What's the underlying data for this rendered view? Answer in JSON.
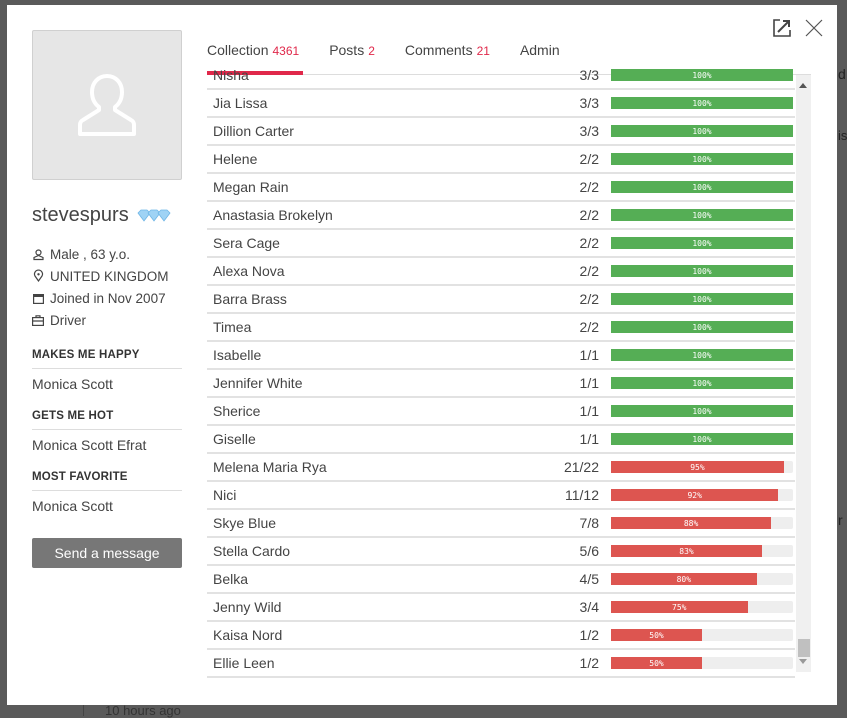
{
  "background": {
    "peek_text_1": "d",
    "peek_text_2": "is",
    "peek_text_3": "r",
    "timestamp": "10 hours ago"
  },
  "modal": {
    "icons": {
      "open_external": "external-link-icon",
      "close": "close-icon"
    }
  },
  "profile": {
    "username": "stevespurs",
    "badge_icon": "diamonds-icon",
    "details": [
      {
        "icon": "user-icon",
        "text": "Male , 63 y.o."
      },
      {
        "icon": "location-pin-icon",
        "text": "UNITED KINGDOM"
      },
      {
        "icon": "calendar-icon",
        "text": "Joined in Nov 2007"
      },
      {
        "icon": "briefcase-icon",
        "text": "Driver"
      }
    ],
    "sections": [
      {
        "title": "MAKES ME HAPPY",
        "value": "Monica Scott"
      },
      {
        "title": "GETS ME HOT",
        "value": "Monica Scott Efrat"
      },
      {
        "title": "MOST FAVORITE",
        "value": "Monica Scott"
      }
    ],
    "send_button": "Send a message"
  },
  "tabs": [
    {
      "label": "Collection",
      "count": "4361",
      "active": true
    },
    {
      "label": "Posts",
      "count": "2",
      "active": false
    },
    {
      "label": "Comments",
      "count": "21",
      "active": false
    },
    {
      "label": "Admin",
      "count": "",
      "active": false
    }
  ],
  "colors": {
    "accent": "#e0284a",
    "complete": "#55ae55",
    "incomplete": "#dd5550",
    "track": "#eeeeee"
  },
  "collection": [
    {
      "name": "Nisha",
      "ratio": "3/3",
      "percent": 100
    },
    {
      "name": "Jia Lissa",
      "ratio": "3/3",
      "percent": 100
    },
    {
      "name": "Dillion Carter",
      "ratio": "3/3",
      "percent": 100
    },
    {
      "name": "Helene",
      "ratio": "2/2",
      "percent": 100
    },
    {
      "name": "Megan Rain",
      "ratio": "2/2",
      "percent": 100
    },
    {
      "name": "Anastasia Brokelyn",
      "ratio": "2/2",
      "percent": 100
    },
    {
      "name": "Sera Cage",
      "ratio": "2/2",
      "percent": 100
    },
    {
      "name": "Alexa Nova",
      "ratio": "2/2",
      "percent": 100
    },
    {
      "name": "Barra Brass",
      "ratio": "2/2",
      "percent": 100
    },
    {
      "name": "Timea",
      "ratio": "2/2",
      "percent": 100
    },
    {
      "name": "Isabelle",
      "ratio": "1/1",
      "percent": 100
    },
    {
      "name": "Jennifer White",
      "ratio": "1/1",
      "percent": 100
    },
    {
      "name": "Sherice",
      "ratio": "1/1",
      "percent": 100
    },
    {
      "name": "Giselle",
      "ratio": "1/1",
      "percent": 100
    },
    {
      "name": "Melena Maria Rya",
      "ratio": "21/22",
      "percent": 95
    },
    {
      "name": "Nici",
      "ratio": "11/12",
      "percent": 92
    },
    {
      "name": "Skye Blue",
      "ratio": "7/8",
      "percent": 88
    },
    {
      "name": "Stella Cardo",
      "ratio": "5/6",
      "percent": 83
    },
    {
      "name": "Belka",
      "ratio": "4/5",
      "percent": 80
    },
    {
      "name": "Jenny Wild",
      "ratio": "3/4",
      "percent": 75
    },
    {
      "name": "Kaisa Nord",
      "ratio": "1/2",
      "percent": 50
    },
    {
      "name": "Ellie Leen",
      "ratio": "1/2",
      "percent": 50
    }
  ]
}
